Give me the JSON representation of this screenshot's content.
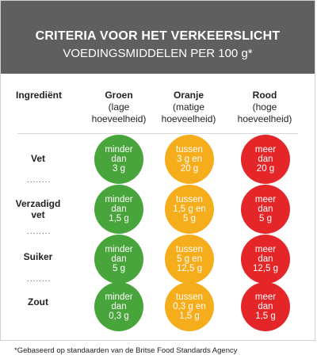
{
  "header": {
    "title": "CRITERIA VOOR HET VERKEERSLICHT",
    "subtitle": "VOEDINGSMIDDELEN PER 100 g*"
  },
  "columns": {
    "ingredient_label": "Ingrediënt",
    "green": {
      "name": "Groen",
      "desc": "(lage\nhoeveelheid)"
    },
    "orange": {
      "name": "Oranje",
      "desc": "(matige\nhoeveelheid)"
    },
    "red": {
      "name": "Rood",
      "desc": "(hoge\nhoeveelheid)"
    }
  },
  "colors": {
    "green": "#48a53b",
    "orange": "#f6ad1b",
    "red": "#e52629",
    "header_bg": "#5f5f5f"
  },
  "rows": [
    {
      "label": "Vet",
      "green": "minder\ndan\n3 g",
      "orange": "tussen\n3 g en\n20 g",
      "red": "meer\ndan\n20 g"
    },
    {
      "label": "Verzadigd\nvet",
      "green": "minder\ndan\n1,5 g",
      "orange": "tussen\n1,5 g en\n5 g",
      "red": "meer\ndan\n5 g"
    },
    {
      "label": "Suiker",
      "green": "minder\ndan\n5 g",
      "orange": "tussen\n5 g en\n12,5 g",
      "red": "meer\ndan\n12,5 g"
    },
    {
      "label": "Zout",
      "green": "minder\ndan\n0,3 g",
      "orange": "tussen\n0,3 g en\n1,5 g",
      "red": "meer\ndan\n1,5 g"
    }
  ],
  "footnote": "*Gebaseerd op standaarden van de Britse Food Standards Agency"
}
